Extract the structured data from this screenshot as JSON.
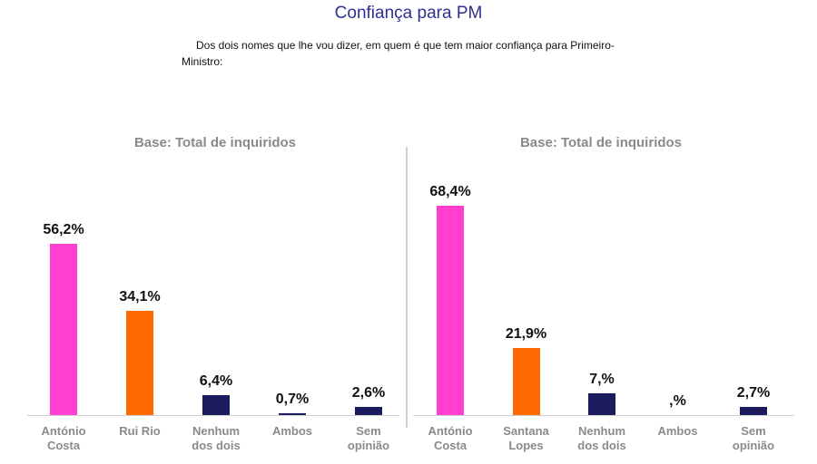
{
  "title": "Confiança para PM",
  "question": "Dos dois nomes que lhe vou dizer, em quem é que tem maior confiança para Primeiro-Ministro:",
  "chart_data": [
    {
      "type": "bar",
      "subtitle": "Base: Total de inquiridos",
      "categories": [
        "António Costa",
        "Rui Rio",
        "Nenhum dos dois",
        "Ambos",
        "Sem opinião"
      ],
      "values": [
        56.2,
        34.1,
        6.4,
        0.7,
        2.6
      ],
      "value_labels": [
        "56,2%",
        "34,1%",
        "6,4%",
        "0,7%",
        "2,6%"
      ],
      "colors": [
        "#ff3fd0",
        "#ff6a00",
        "#1b1b5e",
        "#1b1b5e",
        "#1b1b5e"
      ]
    },
    {
      "type": "bar",
      "subtitle": "Base: Total de inquiridos",
      "categories": [
        "António Costa",
        "Santana Lopes",
        "Nenhum dos dois",
        "Ambos",
        "Sem opinião"
      ],
      "values": [
        68.4,
        21.9,
        7,
        0,
        2.7
      ],
      "value_labels": [
        "68,4%",
        "21,9%",
        "7,%",
        ",%",
        "2,7%"
      ],
      "colors": [
        "#ff3fd0",
        "#ff6a00",
        "#1b1b5e",
        "#1b1b5e",
        "#1b1b5e"
      ]
    }
  ]
}
